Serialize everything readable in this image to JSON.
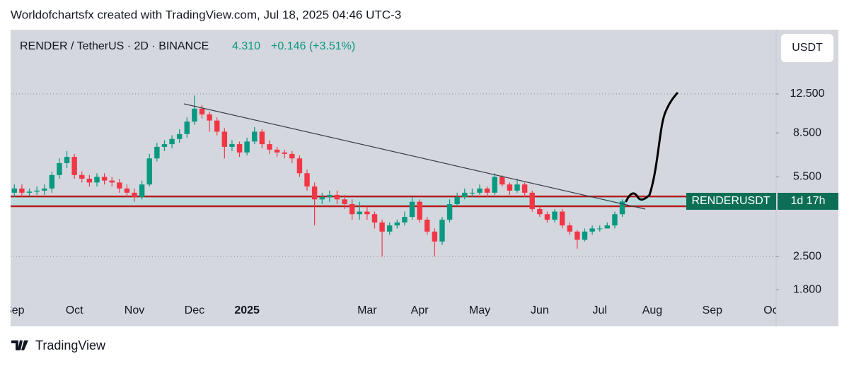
{
  "header": {
    "attribution": "Worldofchartsfx created with TradingView.com, Jul 18, 2025 04:46 UTC-3"
  },
  "legend": {
    "symbol": "RENDER / TetherUS · 2D · BINANCE",
    "price": "4.310",
    "change": "+0.146 (+3.51%)"
  },
  "currency_button": "USDT",
  "price_tag": {
    "symbol": "RENDERUSDT",
    "countdown": "1d 17h"
  },
  "footer": {
    "brand": "TradingView"
  },
  "chart_data": {
    "type": "candlestick",
    "log_scale": true,
    "up_color": "#089981",
    "down_color": "#f23645",
    "ylim": [
      1.74,
      23.6
    ],
    "yticks": [
      {
        "value": 12.5,
        "label": "12.500"
      },
      {
        "value": 8.5,
        "label": "8.500"
      },
      {
        "value": 5.5,
        "label": "5.500"
      },
      {
        "value": 2.5,
        "label": "2.500"
      },
      {
        "value": 1.8,
        "label": "1.800"
      }
    ],
    "dotted_levels": [
      12.5,
      2.5
    ],
    "zone": [
      4.11,
      4.53
    ],
    "zone_color": "#b71c1c",
    "categories": [
      "Sep",
      null,
      null,
      null,
      null,
      null,
      null,
      null,
      "Oct",
      null,
      null,
      null,
      null,
      null,
      null,
      null,
      "Nov",
      null,
      null,
      null,
      null,
      null,
      null,
      null,
      "Dec",
      null,
      null,
      null,
      null,
      null,
      null,
      "2025",
      null,
      null,
      null,
      null,
      null,
      null,
      null,
      null,
      null,
      null,
      null,
      null,
      null,
      null,
      null,
      "Mar",
      null,
      null,
      null,
      null,
      null,
      null,
      "Apr",
      null,
      null,
      null,
      null,
      null,
      null,
      null,
      "May",
      null,
      null,
      null,
      null,
      null,
      null,
      null,
      "Jun",
      null,
      null,
      null,
      null,
      null,
      null,
      null,
      "Jul",
      null,
      null,
      null,
      null,
      null,
      null,
      "Aug",
      null,
      null,
      null,
      null,
      null,
      null,
      null,
      "Sep",
      null,
      null,
      null,
      null,
      null,
      null,
      null,
      "Oct"
    ],
    "open": [
      4.7,
      4.9,
      4.7,
      4.75,
      4.8,
      4.9,
      5.6,
      6.3,
      6.7,
      5.6,
      5.4,
      5.2,
      5.5,
      5.3,
      5.2,
      4.9,
      4.7,
      4.5,
      5.1,
      6.6,
      7.4,
      7.6,
      8.0,
      8.4,
      9.5,
      10.8,
      10.2,
      9.6,
      8.6,
      7.4,
      7.6,
      7.0,
      7.8,
      8.6,
      7.6,
      7.2,
      7.0,
      6.9,
      6.6,
      5.7,
      5.0,
      4.4,
      4.5,
      4.6,
      4.4,
      4.2,
      3.8,
      3.9,
      3.8,
      3.5,
      3.2,
      3.4,
      3.5,
      3.7,
      4.3,
      3.6,
      3.2,
      2.9,
      3.6,
      4.2,
      4.5,
      4.7,
      4.7,
      4.9,
      4.7,
      5.5,
      5.1,
      4.8,
      5.1,
      4.7,
      4.0,
      3.8,
      3.6,
      3.9,
      3.4,
      3.2,
      2.95,
      3.2,
      3.3,
      3.3,
      3.4,
      3.8,
      null,
      null,
      null,
      null,
      null,
      null,
      null,
      null,
      null,
      null,
      null,
      null,
      null,
      null,
      null,
      null,
      null,
      null,
      null,
      null
    ],
    "high": [
      5.1,
      5.1,
      4.9,
      5.0,
      5.1,
      5.8,
      6.6,
      7.1,
      6.9,
      5.8,
      5.6,
      5.7,
      5.7,
      5.5,
      5.4,
      5.1,
      4.9,
      5.3,
      6.9,
      7.7,
      7.9,
      8.3,
      8.8,
      9.9,
      12.3,
      11.2,
      10.5,
      9.9,
      8.9,
      7.9,
      7.8,
      8.1,
      9.0,
      8.8,
      7.9,
      7.4,
      7.2,
      7.1,
      6.8,
      5.9,
      5.2,
      4.7,
      4.8,
      4.8,
      4.6,
      4.4,
      4.3,
      4.1,
      3.9,
      3.6,
      3.5,
      3.6,
      3.9,
      4.5,
      4.4,
      3.7,
      3.3,
      3.7,
      4.4,
      4.7,
      4.9,
      4.9,
      5.1,
      5.0,
      5.7,
      5.6,
      5.2,
      5.4,
      5.2,
      4.8,
      4.1,
      3.9,
      4.0,
      4.0,
      3.5,
      3.25,
      3.3,
      3.4,
      3.4,
      3.5,
      3.9,
      4.4,
      null,
      null,
      null,
      null,
      null,
      null,
      null,
      null,
      null,
      null,
      null,
      null,
      null,
      null,
      null,
      null,
      null,
      null,
      null,
      null
    ],
    "low": [
      4.5,
      4.5,
      4.55,
      4.6,
      4.6,
      4.7,
      5.4,
      6.0,
      5.4,
      5.2,
      5.0,
      5.0,
      5.1,
      5.0,
      4.7,
      4.5,
      4.3,
      4.4,
      5.0,
      6.4,
      7.1,
      7.3,
      7.7,
      8.1,
      9.2,
      9.8,
      8.6,
      8.3,
      6.6,
      7.1,
      6.7,
      6.8,
      7.6,
      7.3,
      6.9,
      6.7,
      6.6,
      6.3,
      5.5,
      4.8,
      3.4,
      4.2,
      4.3,
      4.2,
      4.0,
      3.6,
      3.6,
      3.6,
      3.3,
      2.5,
      3.1,
      3.3,
      3.4,
      3.6,
      3.5,
      3.1,
      2.5,
      2.8,
      3.5,
      4.1,
      4.4,
      4.5,
      4.6,
      4.5,
      4.6,
      5.0,
      4.6,
      4.7,
      4.5,
      3.9,
      3.7,
      3.5,
      3.5,
      3.3,
      3.1,
      2.7,
      2.9,
      3.1,
      3.2,
      3.3,
      3.3,
      3.7,
      null,
      null,
      null,
      null,
      null,
      null,
      null,
      null,
      null,
      null,
      null,
      null,
      null,
      null,
      null,
      null,
      null,
      null,
      null,
      null
    ],
    "close": [
      4.9,
      4.7,
      4.75,
      4.8,
      4.9,
      5.6,
      6.3,
      6.7,
      5.6,
      5.4,
      5.2,
      5.5,
      5.3,
      5.2,
      4.9,
      4.7,
      4.5,
      5.1,
      6.6,
      7.4,
      7.6,
      8.0,
      8.4,
      9.5,
      10.8,
      10.2,
      9.6,
      8.6,
      7.4,
      7.6,
      7.0,
      7.8,
      8.6,
      7.6,
      7.2,
      7.0,
      6.9,
      6.6,
      5.7,
      5.0,
      4.4,
      4.5,
      4.6,
      4.4,
      4.2,
      3.8,
      3.9,
      3.8,
      3.5,
      3.2,
      3.4,
      3.5,
      3.7,
      4.3,
      3.6,
      3.2,
      2.9,
      3.6,
      4.2,
      4.5,
      4.7,
      4.7,
      4.9,
      4.7,
      5.5,
      5.1,
      4.8,
      5.1,
      4.7,
      4.0,
      3.8,
      3.6,
      3.9,
      3.4,
      3.2,
      2.95,
      3.2,
      3.3,
      3.3,
      3.4,
      3.8,
      4.31,
      null,
      null,
      null,
      null,
      null,
      null,
      null,
      null,
      null,
      null,
      null,
      null,
      null,
      null,
      null,
      null,
      null,
      null,
      null,
      null
    ]
  }
}
